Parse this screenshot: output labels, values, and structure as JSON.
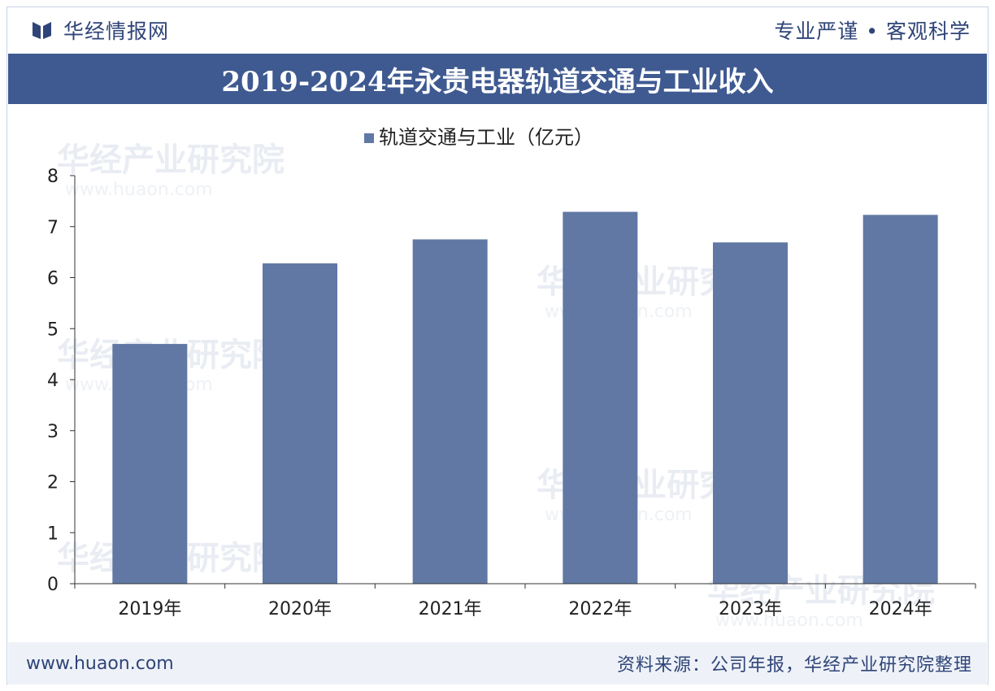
{
  "header": {
    "brand": "华经情报网",
    "slogan": "专业严谨 • 客观科学"
  },
  "title": "2019-2024年永贵电器轨道交通与工业收入",
  "chart_data": {
    "type": "bar",
    "categories": [
      "2019年",
      "2020年",
      "2021年",
      "2022年",
      "2023年",
      "2024年"
    ],
    "series": [
      {
        "name": "轨道交通与工业（亿元）",
        "values": [
          4.7,
          6.28,
          6.75,
          7.29,
          6.69,
          7.23
        ]
      }
    ],
    "ylim": [
      0,
      8
    ],
    "yticks": [
      0,
      1,
      2,
      3,
      4,
      5,
      6,
      7,
      8
    ],
    "legend_position": "top-center",
    "grid": false
  },
  "watermark": {
    "text": "华经产业研究院",
    "url": "www.huaon.com"
  },
  "footer": {
    "website": "www.huaon.com",
    "source": "资料来源：公司年报，华经产业研究院整理"
  },
  "colors": {
    "bar": "#6178a4",
    "title_band": "#3f5a91",
    "text_dark": "#2f4478"
  }
}
